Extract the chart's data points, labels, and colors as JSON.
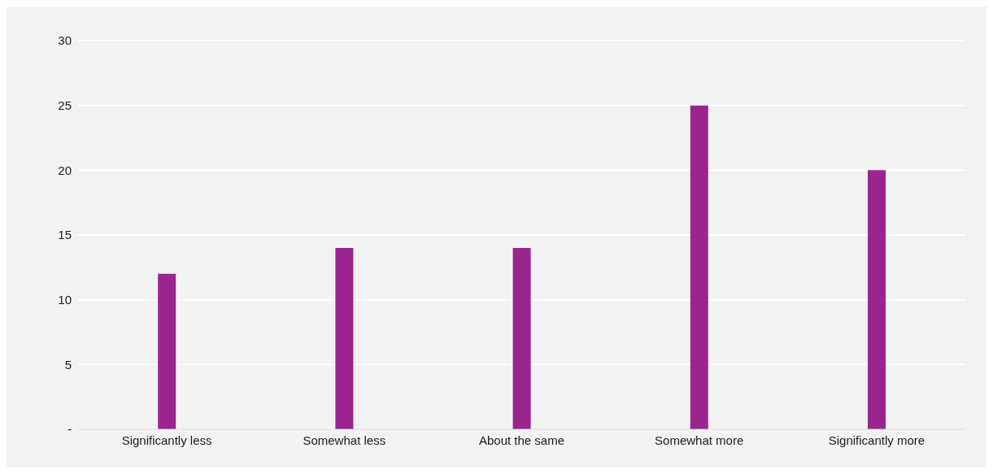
{
  "chart_data": {
    "type": "bar",
    "categories": [
      "Significantly less",
      "Somewhat less",
      "About the same",
      "Somewhat more",
      "Significantly more"
    ],
    "values": [
      12,
      14,
      14,
      25,
      20
    ],
    "color": "#9a258f",
    "ylim": [
      0,
      30
    ],
    "yticks": [
      {
        "value": 0,
        "label": "-"
      },
      5,
      10,
      15,
      20,
      25,
      30
    ],
    "grid": "y"
  }
}
